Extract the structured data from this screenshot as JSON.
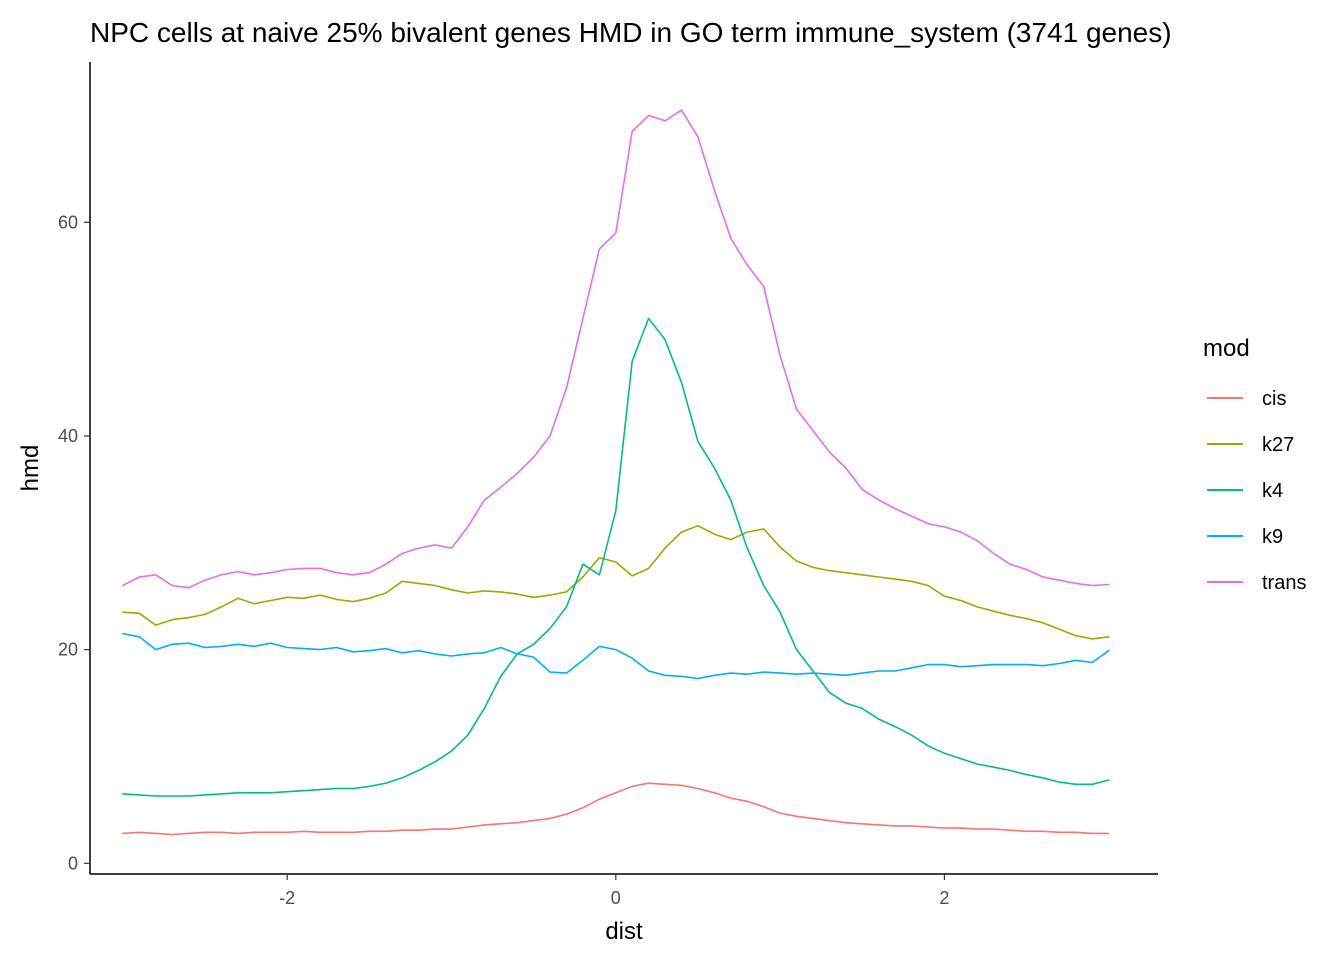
{
  "chart_data": {
    "type": "line",
    "title": "NPC cells at naive 25% bivalent genes HMD in GO term immune_system (3741 genes)",
    "xlabel": "dist",
    "ylabel": "hmd",
    "xlim": [
      -3.2,
      3.3
    ],
    "ylim": [
      -1,
      75
    ],
    "xticks": [
      -2,
      0,
      2
    ],
    "xtick_labels": [
      "-2",
      "0",
      "2"
    ],
    "yticks": [
      0,
      20,
      40,
      60
    ],
    "ytick_labels": [
      "0",
      "20",
      "40",
      "60"
    ],
    "grid": false,
    "legend": {
      "title": "mod",
      "placement": "right"
    },
    "x": [
      -3,
      -2.9,
      -2.8,
      -2.7,
      -2.6,
      -2.5,
      -2.4,
      -2.3,
      -2.2,
      -2.1,
      -2,
      -1.9,
      -1.8,
      -1.7,
      -1.6,
      -1.5,
      -1.4,
      -1.3,
      -1.2,
      -1.1,
      -1,
      -0.9,
      -0.8,
      -0.7,
      -0.6,
      -0.5,
      -0.4,
      -0.3,
      -0.2,
      -0.1,
      0,
      0.1,
      0.2,
      0.3,
      0.4,
      0.5,
      0.6,
      0.7,
      0.8,
      0.9,
      1,
      1.1,
      1.2,
      1.3,
      1.4,
      1.5,
      1.6,
      1.7,
      1.8,
      1.9,
      2,
      2.1,
      2.2,
      2.3,
      2.4,
      2.5,
      2.6,
      2.7,
      2.8,
      2.9,
      3
    ],
    "series": [
      {
        "name": "cis",
        "color": "#F8766D",
        "values": [
          2.8,
          2.9,
          2.8,
          2.7,
          2.8,
          2.9,
          2.9,
          2.8,
          2.9,
          2.9,
          2.9,
          3.0,
          2.9,
          2.9,
          2.9,
          3.0,
          3.0,
          3.1,
          3.1,
          3.2,
          3.2,
          3.4,
          3.6,
          3.7,
          3.8,
          4.0,
          4.2,
          4.6,
          5.2,
          6.0,
          6.6,
          7.2,
          7.5,
          7.4,
          7.3,
          7.0,
          6.6,
          6.1,
          5.8,
          5.3,
          4.7,
          4.4,
          4.2,
          4.0,
          3.8,
          3.7,
          3.6,
          3.5,
          3.5,
          3.4,
          3.3,
          3.3,
          3.2,
          3.2,
          3.1,
          3.0,
          3.0,
          2.9,
          2.9,
          2.8,
          2.8
        ]
      },
      {
        "name": "k27",
        "color": "#A3A500",
        "values": [
          23.5,
          23.4,
          22.3,
          22.8,
          23.0,
          23.3,
          24.0,
          24.8,
          24.3,
          24.6,
          24.9,
          24.8,
          25.1,
          24.7,
          24.5,
          24.8,
          25.3,
          26.4,
          26.2,
          26.0,
          25.6,
          25.3,
          25.5,
          25.4,
          25.2,
          24.9,
          25.1,
          25.4,
          26.8,
          28.6,
          28.2,
          26.9,
          27.6,
          29.5,
          31.0,
          31.6,
          30.8,
          30.3,
          31.0,
          31.3,
          29.6,
          28.3,
          27.7,
          27.4,
          27.2,
          27.0,
          26.8,
          26.6,
          26.4,
          26.0,
          25.0,
          24.6,
          24.0,
          23.6,
          23.2,
          22.9,
          22.5,
          21.9,
          21.3,
          21.0,
          21.2
        ]
      },
      {
        "name": "k4",
        "color": "#00BF7D",
        "values": [
          6.5,
          6.4,
          6.3,
          6.3,
          6.3,
          6.4,
          6.5,
          6.6,
          6.6,
          6.6,
          6.7,
          6.8,
          6.9,
          7.0,
          7.0,
          7.2,
          7.5,
          8.0,
          8.7,
          9.5,
          10.5,
          12.0,
          14.5,
          17.5,
          19.6,
          20.5,
          22.0,
          24.0,
          28.0,
          27.0,
          33.0,
          47.0,
          51.0,
          49.0,
          45.0,
          39.5,
          37.0,
          34.0,
          29.5,
          26.0,
          23.5,
          20.0,
          18.0,
          16.0,
          15.0,
          14.5,
          13.5,
          12.8,
          12.0,
          11.0,
          10.3,
          9.8,
          9.3,
          9.0,
          8.7,
          8.3,
          8.0,
          7.6,
          7.4,
          7.4,
          7.8
        ]
      },
      {
        "name": "k9",
        "color": "#00B0F6",
        "values": [
          21.5,
          21.2,
          20.0,
          20.5,
          20.6,
          20.2,
          20.3,
          20.5,
          20.3,
          20.6,
          20.2,
          20.1,
          20.0,
          20.2,
          19.8,
          19.9,
          20.1,
          19.7,
          19.9,
          19.6,
          19.4,
          19.6,
          19.7,
          20.2,
          19.6,
          19.3,
          17.9,
          17.8,
          19.0,
          20.3,
          20.0,
          19.2,
          18.0,
          17.6,
          17.5,
          17.3,
          17.6,
          17.8,
          17.7,
          17.9,
          17.8,
          17.7,
          17.8,
          17.7,
          17.6,
          17.8,
          18.0,
          18.0,
          18.3,
          18.6,
          18.6,
          18.4,
          18.5,
          18.6,
          18.6,
          18.6,
          18.5,
          18.7,
          19.0,
          18.8,
          19.9
        ]
      },
      {
        "name": "trans",
        "color": "#E76BF3",
        "values": [
          26.0,
          26.8,
          27.0,
          26.0,
          25.8,
          26.5,
          27.0,
          27.3,
          27.0,
          27.2,
          27.5,
          27.6,
          27.6,
          27.2,
          27.0,
          27.2,
          28.0,
          29.0,
          29.5,
          29.8,
          29.5,
          31.5,
          34.0,
          35.2,
          36.5,
          38.0,
          40.0,
          44.5,
          51.0,
          57.5,
          59.0,
          68.5,
          70.0,
          69.5,
          70.5,
          68.0,
          63.0,
          58.5,
          56.0,
          54.0,
          47.5,
          42.5,
          40.5,
          38.5,
          37.0,
          35.0,
          34.0,
          33.2,
          32.5,
          31.8,
          31.5,
          31.0,
          30.2,
          29.0,
          28.0,
          27.5,
          26.8,
          26.5,
          26.2,
          26.0,
          26.1
        ]
      }
    ]
  }
}
